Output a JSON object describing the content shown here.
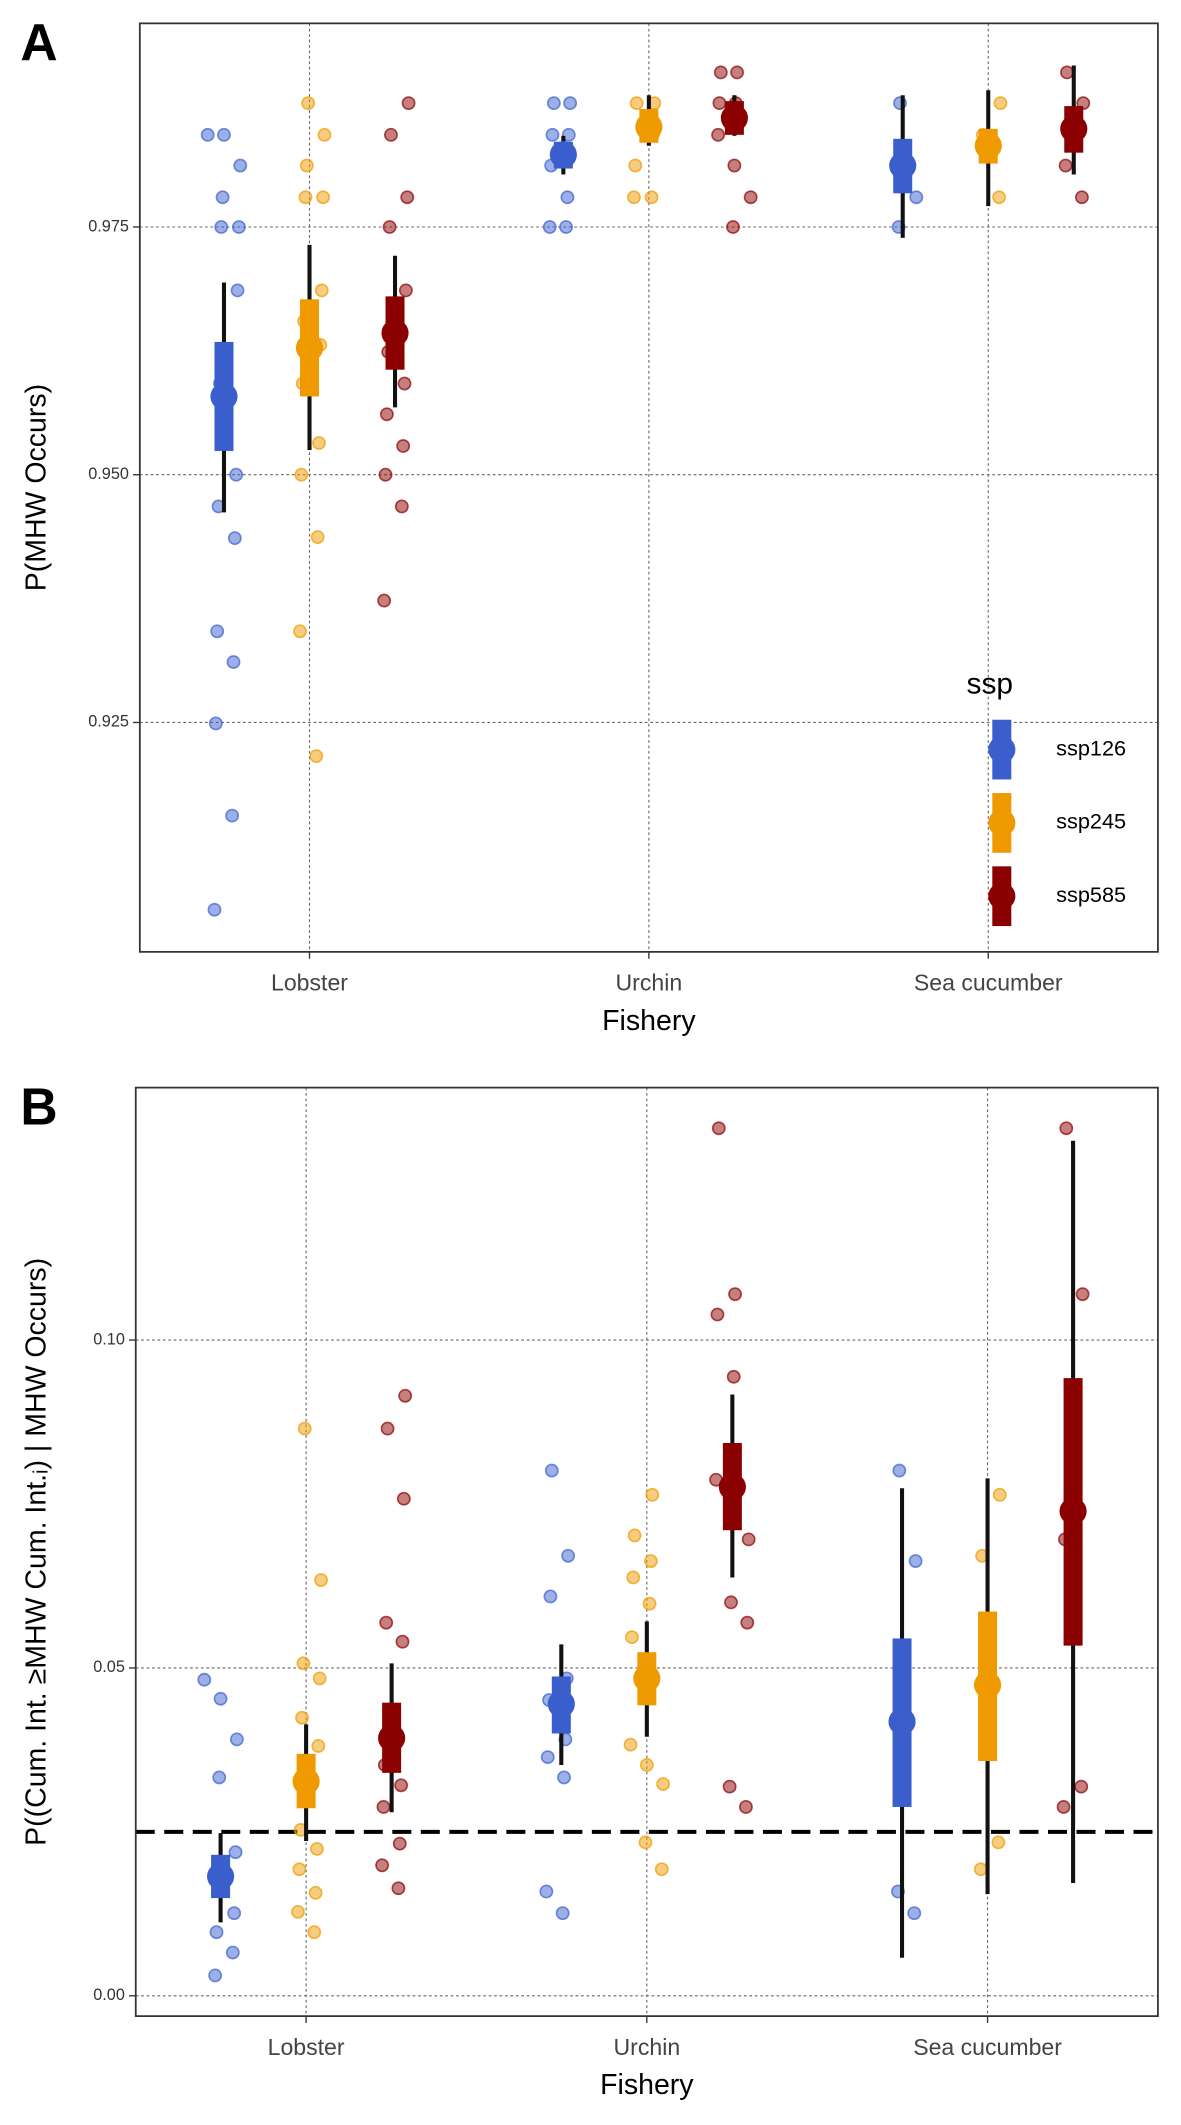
{
  "chart_data": [
    {
      "type": "pointrange",
      "panel_label": "A",
      "x_label": "Fishery",
      "y_label": "P(MHW Occurs)",
      "categories": [
        "Lobster",
        "Urchin",
        "Sea cucumber"
      ],
      "ylim": [
        0.90185,
        0.99555
      ],
      "yticks": [
        0.925,
        {
          "value": 0.95,
          "label": "0.950"
        },
        0.975
      ],
      "grid": true,
      "legend": "bottom-right",
      "legend_title": "ssp",
      "series": [
        {
          "name": "ssp126",
          "color": "#3a5fcd",
          "median": [
            0.9579,
            0.9823,
            0.9812
          ],
          "inner": [
            [
              0.9524,
              0.9634
            ],
            [
              0.9809,
              0.9836
            ],
            [
              0.9784,
              0.9839
            ]
          ],
          "outer": [
            [
              0.9462,
              0.9694
            ],
            [
              0.9803,
              0.9842
            ],
            [
              0.9739,
              0.9883
            ]
          ],
          "points": [
            [
              0.9843,
              0.9843,
              0.9812,
              0.978,
              0.975,
              0.975,
              0.9686,
              0.9592,
              0.95,
              0.9468,
              0.9436,
              0.9342,
              0.9311,
              0.9249,
              0.9156,
              0.9061
            ],
            [
              0.9875,
              0.9875,
              0.9843,
              0.9843,
              0.9812,
              0.978,
              0.975,
              0.975
            ],
            [
              0.9875,
              0.978,
              0.975
            ]
          ]
        },
        {
          "name": "ssp245",
          "color": "#ee9a00",
          "median": [
            0.9628,
            0.9851,
            0.9832
          ],
          "inner": [
            [
              0.9579,
              0.9677
            ],
            [
              0.9835,
              0.9869
            ],
            [
              0.9814,
              0.9849
            ]
          ],
          "outer": [
            [
              0.9525,
              0.9732
            ],
            [
              0.9832,
              0.9883
            ],
            [
              0.9771,
              0.9888
            ]
          ],
          "points": [
            [
              0.9875,
              0.9843,
              0.9812,
              0.978,
              0.978,
              0.9686,
              0.9655,
              0.9631,
              0.9592,
              0.9532,
              0.95,
              0.9437,
              0.9342,
              0.9216
            ],
            [
              0.9875,
              0.9875,
              0.9843,
              0.9812,
              0.978,
              0.978
            ],
            [
              0.9875,
              0.9843,
              0.978
            ]
          ]
        },
        {
          "name": "ssp585",
          "color": "#8b0000",
          "median": [
            0.9643,
            0.986,
            0.9849
          ],
          "inner": [
            [
              0.9606,
              0.968
            ],
            [
              0.9843,
              0.9877
            ],
            [
              0.9825,
              0.9872
            ]
          ],
          "outer": [
            [
              0.9568,
              0.9721
            ],
            [
              0.9842,
              0.9883
            ],
            [
              0.9803,
              0.9913
            ]
          ],
          "points": [
            [
              0.9875,
              0.9843,
              0.978,
              0.975,
              0.9686,
              0.9624,
              0.9592,
              0.9561,
              0.9529,
              0.95,
              0.9468,
              0.9373
            ],
            [
              0.9906,
              0.9906,
              0.9875,
              0.9875,
              0.9843,
              0.9812,
              0.978,
              0.975
            ],
            [
              0.9906,
              0.9875,
              0.9812,
              0.978
            ]
          ]
        }
      ]
    },
    {
      "type": "pointrange",
      "panel_label": "B",
      "x_label": "Fishery",
      "y_label": "P((Cum. Int. ≥MHW Cum. Int.ᵢ) | MHW Occurs)",
      "categories": [
        "Lobster",
        "Urchin",
        "Sea cucumber"
      ],
      "ylim": [
        -0.0031,
        0.1385
      ],
      "yticks": [
        {
          "value": 0,
          "label": "0.00"
        },
        0.05,
        {
          "value": 0.1,
          "label": "0.10"
        }
      ],
      "grid": true,
      "hline": 0.025,
      "series": [
        {
          "color": "#3a5fcd",
          "median": [
            0.0182,
            0.0445,
            0.0418
          ],
          "inner": [
            [
              0.0149,
              0.0215
            ],
            [
              0.04,
              0.0487
            ],
            [
              0.0288,
              0.0545
            ]
          ],
          "outer": [
            [
              0.0112,
              0.0248
            ],
            [
              0.0352,
              0.0536
            ],
            [
              0.0058,
              0.0774
            ]
          ],
          "points": [
            [
              0.0482,
              0.0453,
              0.0391,
              0.0333,
              0.0219,
              0.0161,
              0.0126,
              0.0097,
              0.0066,
              0.0031
            ],
            [
              0.0801,
              0.0671,
              0.0609,
              0.0484,
              0.0451,
              0.0391,
              0.0364,
              0.0333,
              0.0159,
              0.0126
            ],
            [
              0.0801,
              0.0663,
              0.0159,
              0.0126
            ]
          ]
        },
        {
          "color": "#ee9a00",
          "median": [
            0.0327,
            0.0484,
            0.0474
          ],
          "inner": [
            [
              0.0286,
              0.0369
            ],
            [
              0.0443,
              0.0524
            ],
            [
              0.0358,
              0.0586
            ]
          ],
          "outer": [
            [
              0.0236,
              0.0414
            ],
            [
              0.0395,
              0.0571
            ],
            [
              0.0155,
              0.0789
            ]
          ],
          "points": [
            [
              0.0865,
              0.0634,
              0.0507,
              0.0484,
              0.0424,
              0.0381,
              0.0253,
              0.0224,
              0.0193,
              0.0157,
              0.0128,
              0.0097
            ],
            [
              0.0764,
              0.0702,
              0.0663,
              0.0638,
              0.0598,
              0.0547,
              0.0511,
              0.0383,
              0.0352,
              0.0323,
              0.0234,
              0.0193
            ],
            [
              0.0764,
              0.0671,
              0.0234,
              0.0193
            ]
          ]
        },
        {
          "color": "#8b0000",
          "median": [
            0.0393,
            0.0776,
            0.0739
          ],
          "inner": [
            [
              0.034,
              0.0447
            ],
            [
              0.071,
              0.0843
            ],
            [
              0.0534,
              0.0942
            ]
          ],
          "outer": [
            [
              0.028,
              0.0507
            ],
            [
              0.0638,
              0.0917
            ],
            [
              0.0172,
              0.1304
            ]
          ],
          "points": [
            [
              0.0915,
              0.0865,
              0.0758,
              0.0569,
              0.054,
              0.0352,
              0.0321,
              0.0288,
              0.0232,
              0.0199,
              0.0164
            ],
            [
              0.1323,
              0.107,
              0.1039,
              0.0944,
              0.0787,
              0.0758,
              0.0696,
              0.06,
              0.0569,
              0.0319,
              0.0288
            ],
            [
              0.1323,
              0.107,
              0.0696,
              0.0319,
              0.0288
            ]
          ]
        }
      ]
    }
  ]
}
